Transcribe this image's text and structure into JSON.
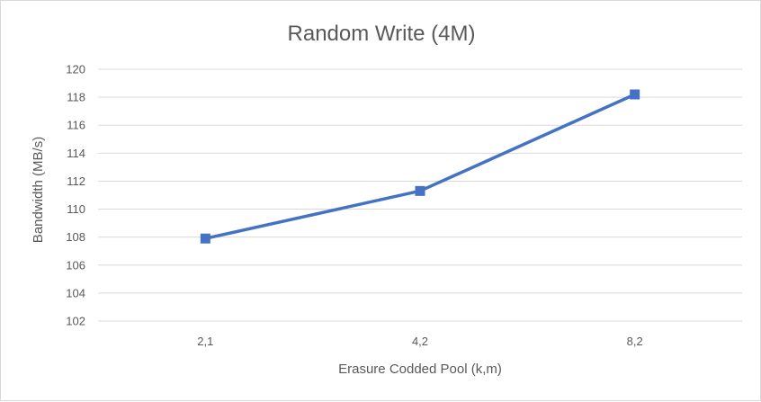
{
  "chart_data": {
    "type": "line",
    "title": "Random Write (4M)",
    "xlabel": "Erasure Codded Pool (k,m)",
    "ylabel": "Bandwidth (MB/s)",
    "categories": [
      "2,1",
      "4,2",
      "8,2"
    ],
    "series": [
      {
        "values": [
          107.9,
          111.3,
          118.2
        ],
        "color": "#4472c4",
        "marker": "square"
      }
    ],
    "ylim": [
      102,
      120
    ],
    "yticks": [
      "102",
      "104",
      "106",
      "108",
      "110",
      "112",
      "114",
      "116",
      "118",
      "120"
    ],
    "grid": true,
    "legend": "none"
  }
}
